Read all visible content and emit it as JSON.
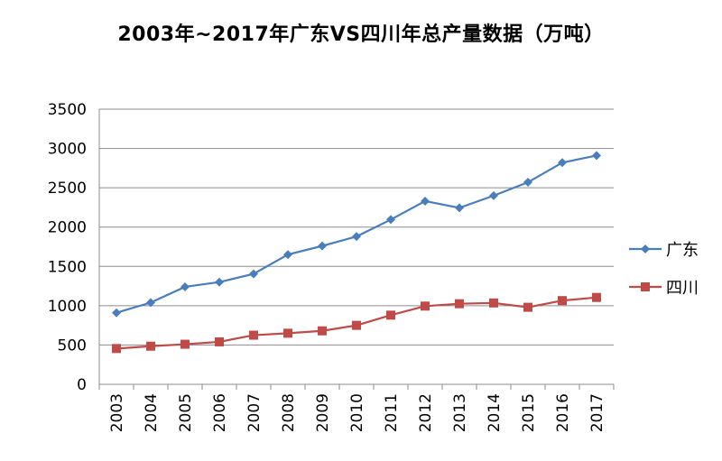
{
  "chart_data": {
    "type": "line",
    "title": "2003年~2017年广东VS四川年总产量数据（万吨）",
    "xlabel": "",
    "ylabel": "",
    "categories": [
      "2003",
      "2004",
      "2005",
      "2006",
      "2007",
      "2008",
      "2009",
      "2010",
      "2011",
      "2012",
      "2013",
      "2014",
      "2015",
      "2016",
      "2017"
    ],
    "ylim": [
      0,
      3500
    ],
    "yticks": [
      0,
      500,
      1000,
      1500,
      2000,
      2500,
      3000,
      3500
    ],
    "grid": true,
    "legend_position": "right",
    "series": [
      {
        "name": "广东",
        "color": "#4a7ebb",
        "marker": "diamond",
        "values": [
          910,
          1040,
          1240,
          1300,
          1405,
          1650,
          1760,
          1880,
          2095,
          2330,
          2245,
          2400,
          2570,
          2820,
          2910
        ]
      },
      {
        "name": "四川",
        "color": "#be4b48",
        "marker": "square",
        "values": [
          455,
          485,
          510,
          540,
          625,
          650,
          680,
          750,
          880,
          995,
          1025,
          1035,
          980,
          1065,
          1105
        ]
      }
    ]
  }
}
